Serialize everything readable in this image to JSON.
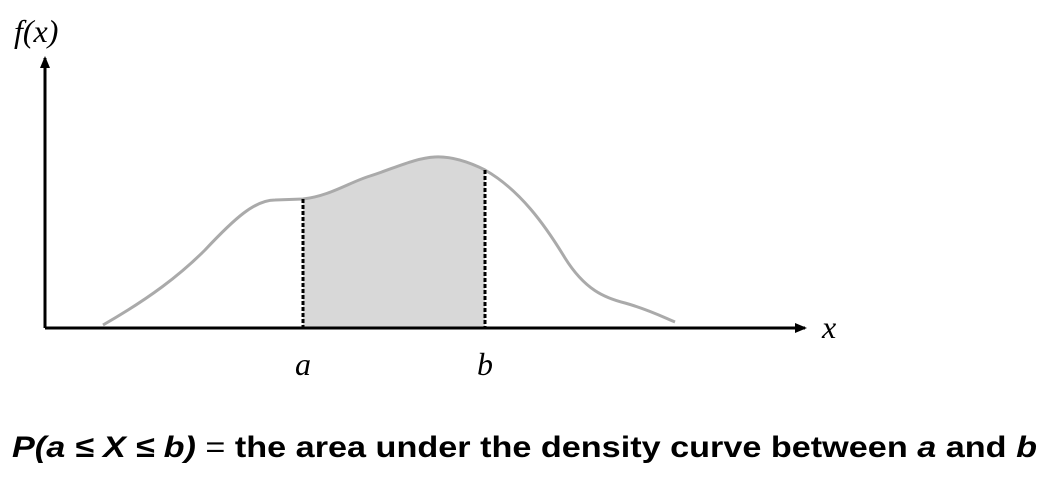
{
  "y_axis_label": "f(x)",
  "x_axis_label": "x",
  "markers": [
    "a",
    "b"
  ],
  "caption": {
    "prefix": "P(a ≤ X ≤ b)",
    "equals": "=",
    "text": "the area under the density curve between",
    "a": "a",
    "and": "and",
    "b": "b"
  }
}
